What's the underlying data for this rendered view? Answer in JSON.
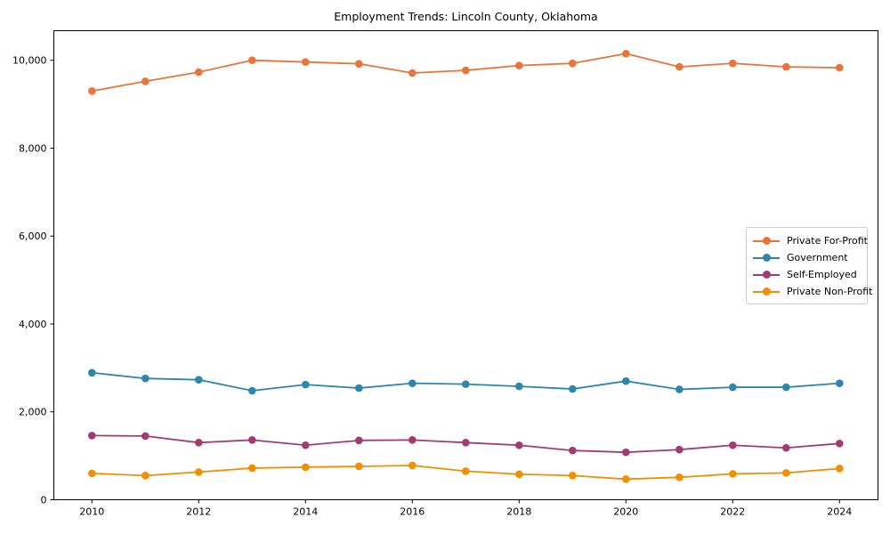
{
  "chart_data": {
    "type": "line",
    "title": "Employment Trends: Lincoln County, Oklahoma",
    "xlabel": "",
    "ylabel": "",
    "grid": false,
    "legend_position": "center right",
    "xlim": [
      2009.3,
      2024.7
    ],
    "ylim": [
      0,
      10680
    ],
    "x": [
      2010,
      2011,
      2012,
      2013,
      2014,
      2015,
      2016,
      2017,
      2018,
      2019,
      2020,
      2021,
      2022,
      2023,
      2024
    ],
    "xticks": [
      {
        "v": 2010,
        "label": "2010"
      },
      {
        "v": 2012,
        "label": "2012"
      },
      {
        "v": 2014,
        "label": "2014"
      },
      {
        "v": 2016,
        "label": "2016"
      },
      {
        "v": 2018,
        "label": "2018"
      },
      {
        "v": 2020,
        "label": "2020"
      },
      {
        "v": 2022,
        "label": "2022"
      },
      {
        "v": 2024,
        "label": "2024"
      }
    ],
    "yticks": [
      {
        "v": 0,
        "label": "0"
      },
      {
        "v": 2000,
        "label": "2,000"
      },
      {
        "v": 4000,
        "label": "4,000"
      },
      {
        "v": 6000,
        "label": "6,000"
      },
      {
        "v": 8000,
        "label": "8,000"
      },
      {
        "v": 10000,
        "label": "10,000"
      }
    ],
    "series": [
      {
        "name": "Private For-Profit",
        "color": "#E8763C",
        "values": [
          9300,
          9520,
          9730,
          10000,
          9960,
          9920,
          9710,
          9770,
          9880,
          9930,
          10150,
          9850,
          9930,
          9850,
          9830
        ]
      },
      {
        "name": "Government",
        "color": "#2E86AB",
        "values": [
          2890,
          2760,
          2730,
          2480,
          2620,
          2540,
          2650,
          2630,
          2580,
          2520,
          2700,
          2510,
          2560,
          2560,
          2650
        ]
      },
      {
        "name": "Self-Employed",
        "color": "#A23B72",
        "values": [
          1460,
          1450,
          1300,
          1360,
          1240,
          1350,
          1360,
          1300,
          1240,
          1120,
          1080,
          1140,
          1240,
          1180,
          1280
        ]
      },
      {
        "name": "Private Non-Profit",
        "color": "#F18F01",
        "values": [
          600,
          550,
          630,
          720,
          740,
          760,
          780,
          650,
          580,
          550,
          470,
          510,
          590,
          610,
          710
        ]
      }
    ]
  }
}
